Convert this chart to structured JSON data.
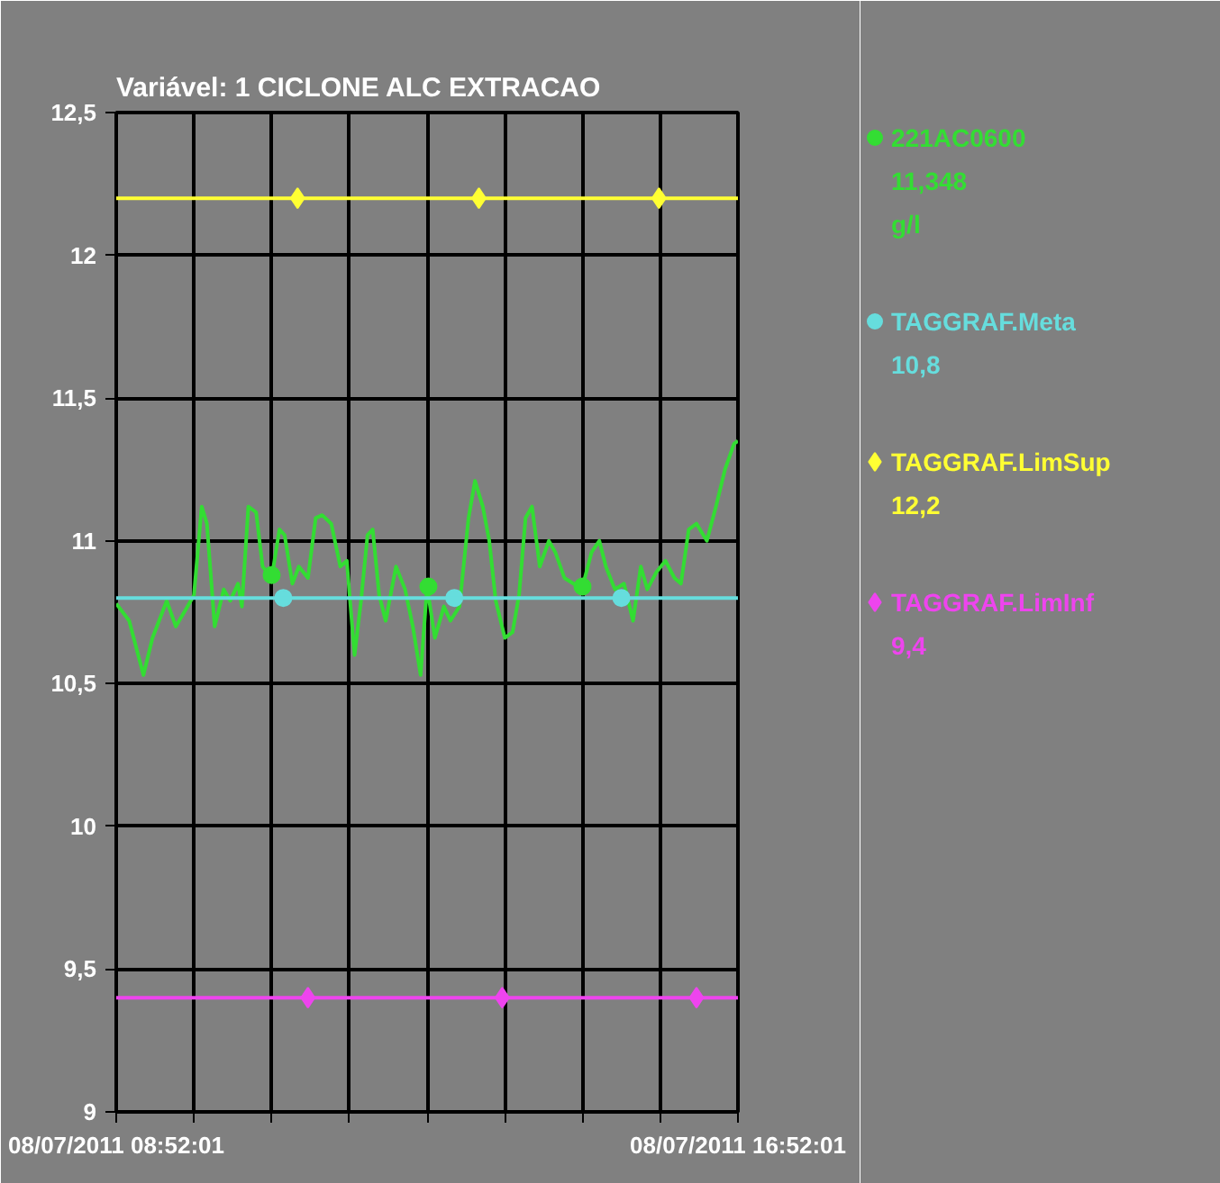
{
  "chart_data": {
    "type": "line",
    "title": "Variável: 1 CICLONE   ALC EXTRACAO",
    "xlim": [
      "2011-07-08T08:52",
      "2011-07-08T16:52"
    ],
    "xticks": [
      {
        "value": "2011-07-08T08:52",
        "label": "08/07/2011 08:52:01"
      },
      {
        "value": "2011-07-08T09:52",
        "label": null
      },
      {
        "value": "2011-07-08T10:52",
        "label": null
      },
      {
        "value": "2011-07-08T11:52",
        "label": null
      },
      {
        "value": "2011-07-08T12:52",
        "label": null
      },
      {
        "value": "2011-07-08T13:52",
        "label": null
      },
      {
        "value": "2011-07-08T14:52",
        "label": null
      },
      {
        "value": "2011-07-08T15:52",
        "label": null
      },
      {
        "value": "2011-07-08T16:52",
        "label": "08/07/2011 16:52:01"
      }
    ],
    "ylim": [
      9,
      12.5
    ],
    "yticks": [
      9,
      {
        "value": 9.5,
        "label": "9,5"
      },
      10,
      {
        "value": 10.5,
        "label": "10,5"
      },
      11,
      {
        "value": 11.5,
        "label": "11,5"
      },
      12,
      {
        "value": 12.5,
        "label": "12,5"
      }
    ],
    "grid": true,
    "legend": "right",
    "ref_lines": [
      {
        "axis": "y",
        "value": 12.2,
        "color": "#ffff33"
      },
      {
        "axis": "y",
        "value": 10.8,
        "color": "#66dddd"
      },
      {
        "axis": "y",
        "value": 9.4,
        "color": "#ee44ee"
      }
    ],
    "series": [
      {
        "color": "#33dd33",
        "x": [
          "2011-07-08T08:52",
          "2011-07-08T09:02",
          "2011-07-08T09:13",
          "2011-07-08T09:20",
          "2011-07-08T09:31",
          "2011-07-08T09:38",
          "2011-07-08T09:47",
          "2011-07-08T09:52",
          "2011-07-08T09:58",
          "2011-07-08T10:02",
          "2011-07-08T10:08",
          "2011-07-08T10:15",
          "2011-07-08T10:20",
          "2011-07-08T10:26",
          "2011-07-08T10:29",
          "2011-07-08T10:34",
          "2011-07-08T10:40",
          "2011-07-08T10:45",
          "2011-07-08T10:52",
          "2011-07-08T10:58",
          "2011-07-08T11:02",
          "2011-07-08T11:08",
          "2011-07-08T11:13",
          "2011-07-08T11:20",
          "2011-07-08T11:26",
          "2011-07-08T11:31",
          "2011-07-08T11:38",
          "2011-07-08T11:45",
          "2011-07-08T11:50",
          "2011-07-08T11:56",
          "2011-07-08T12:01",
          "2011-07-08T12:06",
          "2011-07-08T12:10",
          "2011-07-08T12:15",
          "2011-07-08T12:20",
          "2011-07-08T12:28",
          "2011-07-08T12:35",
          "2011-07-08T12:41",
          "2011-07-08T12:47",
          "2011-07-08T12:52",
          "2011-07-08T12:58",
          "2011-07-08T13:05",
          "2011-07-08T13:10",
          "2011-07-08T13:17",
          "2011-07-08T13:24",
          "2011-07-08T13:29",
          "2011-07-08T13:35",
          "2011-07-08T13:40",
          "2011-07-08T13:45",
          "2011-07-08T13:52",
          "2011-07-08T13:58",
          "2011-07-08T14:03",
          "2011-07-08T14:08",
          "2011-07-08T14:13",
          "2011-07-08T14:19",
          "2011-07-08T14:26",
          "2011-07-08T14:31",
          "2011-07-08T14:38",
          "2011-07-08T14:45",
          "2011-07-08T14:52",
          "2011-07-08T14:59",
          "2011-07-08T15:05",
          "2011-07-08T15:10",
          "2011-07-08T15:17",
          "2011-07-08T15:24",
          "2011-07-08T15:31",
          "2011-07-08T15:37",
          "2011-07-08T15:42",
          "2011-07-08T15:49",
          "2011-07-08T15:56",
          "2011-07-08T16:03",
          "2011-07-08T16:08",
          "2011-07-08T16:14",
          "2011-07-08T16:20",
          "2011-07-08T16:28",
          "2011-07-08T16:35",
          "2011-07-08T16:42",
          "2011-07-08T16:49",
          "2011-07-08T16:52"
        ],
        "values": [
          10.78,
          10.72,
          10.53,
          10.66,
          10.79,
          10.7,
          10.77,
          10.81,
          11.12,
          11.06,
          10.7,
          10.83,
          10.79,
          10.85,
          10.77,
          11.12,
          11.1,
          10.91,
          10.87,
          11.04,
          11.02,
          10.85,
          10.91,
          10.87,
          11.08,
          11.09,
          11.06,
          10.91,
          10.93,
          10.6,
          10.79,
          11.02,
          11.04,
          10.81,
          10.72,
          10.91,
          10.83,
          10.7,
          10.53,
          10.84,
          10.66,
          10.77,
          10.72,
          10.77,
          11.08,
          11.21,
          11.12,
          11.0,
          10.79,
          10.66,
          10.68,
          10.81,
          11.08,
          11.12,
          10.91,
          11.0,
          10.96,
          10.87,
          10.85,
          10.84,
          10.96,
          11.0,
          10.91,
          10.83,
          10.85,
          10.72,
          10.91,
          10.83,
          10.89,
          10.93,
          10.87,
          10.85,
          11.04,
          11.06,
          11.0,
          11.12,
          11.25,
          11.34,
          11.35
        ]
      },
      {
        "type": "scatter",
        "name": "221AC0600",
        "color": "#33dd33",
        "marker": "circle",
        "x": [
          "2011-07-08T10:52",
          "2011-07-08T12:53",
          "2011-07-08T14:52"
        ],
        "values": [
          10.88,
          10.84,
          10.84
        ]
      },
      {
        "type": "scatter",
        "name": "TAGGRAF.Meta",
        "color": "#66dddd",
        "marker": "circle",
        "x": [
          "2011-07-08T11:01",
          "2011-07-08T13:13",
          "2011-07-08T15:22"
        ],
        "values": [
          10.8,
          10.8,
          10.8
        ]
      },
      {
        "type": "scatter",
        "name": "TAGGRAF.LimSup",
        "color": "#ffff33",
        "marker": "diamond",
        "x": [
          "2011-07-08T11:12",
          "2011-07-08T13:32",
          "2011-07-08T15:51"
        ],
        "values": [
          12.2,
          12.2,
          12.2
        ]
      },
      {
        "type": "scatter",
        "name": "TAGGRAF.LimInf",
        "color": "#ee44ee",
        "marker": "diamond",
        "x": [
          "2011-07-08T11:20",
          "2011-07-08T13:50",
          "2011-07-08T16:20"
        ],
        "values": [
          9.4,
          9.4,
          9.4
        ]
      }
    ],
    "annotations": [
      "11,348",
      "g/l",
      "10,8",
      "12,2",
      "9,4"
    ]
  }
}
